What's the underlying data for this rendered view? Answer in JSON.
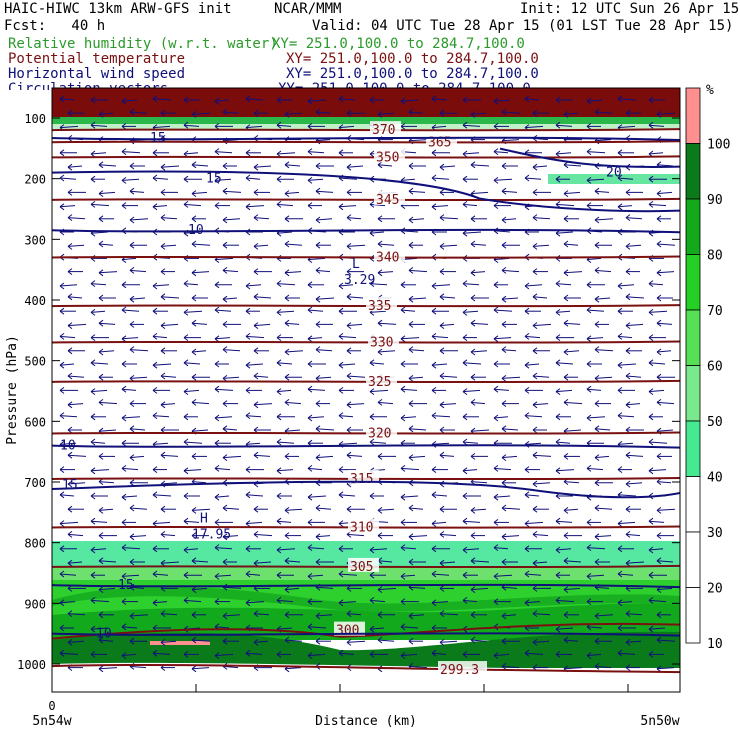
{
  "header": {
    "model": "HAIC-HIWC 13km ARW-GFS init",
    "center": "NCAR/MMM",
    "init": "Init: 12 UTC Sun 26 Apr 15",
    "fcst": "Fcst:   40 h",
    "valid": "Valid: 04 UTC Tue 28 Apr 15 (01 LST Tue 28 Apr 15)"
  },
  "fields": [
    {
      "name": "Relative humidity (w.r.t. water)",
      "xy": "XY= 251.0,100.0 to 284.7,100.0",
      "color": "#2a9a2a"
    },
    {
      "name": "Potential temperature",
      "xy": "XY= 251.0,100.0 to 284.7,100.0",
      "color": "#7a1010"
    },
    {
      "name": "Horizontal wind speed",
      "xy": "XY= 251.0,100.0 to 284.7,100.0",
      "color": "#10107a"
    },
    {
      "name": "Circulation vectors",
      "xy": "XY= 251.0,100.0 to 284.7,100.0",
      "color": "#10107a"
    }
  ],
  "chart_data": {
    "type": "heatmap",
    "ylabel": "Pressure (hPa)",
    "xlabel": "Distance (km)",
    "y_ticks": [
      100,
      200,
      300,
      400,
      500,
      600,
      700,
      800,
      900,
      1000
    ],
    "ylim": [
      1050,
      70
    ],
    "x_tick_labels": {
      "zero": "0",
      "left": "5n54w",
      "right": "5n50w"
    },
    "colorbar": {
      "unit": "%",
      "levels": [
        {
          "label": "100",
          "color": "#ff9090"
        },
        {
          "label": "90",
          "color": "#0a7a1a"
        },
        {
          "label": "80",
          "color": "#12aa1c"
        },
        {
          "label": "70",
          "color": "#24d024"
        },
        {
          "label": "60",
          "color": "#56e056"
        },
        {
          "label": "50",
          "color": "#7ae88c"
        },
        {
          "label": "40",
          "color": "#46e890"
        },
        {
          "label": "30",
          "color": "#ffffff"
        },
        {
          "label": "20",
          "color": "#ffffff"
        },
        {
          "label": "10",
          "color": "#ffffff"
        }
      ]
    },
    "theta_contours": [
      {
        "label": "370",
        "p": 120
      },
      {
        "label": "365",
        "p": 140
      },
      {
        "label": "350",
        "p": 165
      },
      {
        "label": "345",
        "p": 235
      },
      {
        "label": "340",
        "p": 330
      },
      {
        "label": "335",
        "p": 410
      },
      {
        "label": "330",
        "p": 470
      },
      {
        "label": "325",
        "p": 535
      },
      {
        "label": "320",
        "p": 620
      },
      {
        "label": "315",
        "p": 695
      },
      {
        "label": "310",
        "p": 775
      },
      {
        "label": "305",
        "p": 840
      },
      {
        "label": "300",
        "p": 945
      },
      {
        "label": "299.3",
        "p": 1010
      }
    ],
    "wind_contours": [
      {
        "label": "15",
        "p": 133
      },
      {
        "label": "15",
        "p": 200
      },
      {
        "label": "20",
        "p": 190
      },
      {
        "label": "10",
        "p": 285
      },
      {
        "label": "10",
        "p": 640
      },
      {
        "label": "15",
        "p": 705
      },
      {
        "label": "15",
        "p": 870
      },
      {
        "label": "10",
        "p": 950
      }
    ],
    "extrema": [
      {
        "symbol": "L",
        "value": "3.29",
        "p": 370
      },
      {
        "symbol": "H",
        "value": "17.95",
        "p": 790
      }
    ]
  }
}
